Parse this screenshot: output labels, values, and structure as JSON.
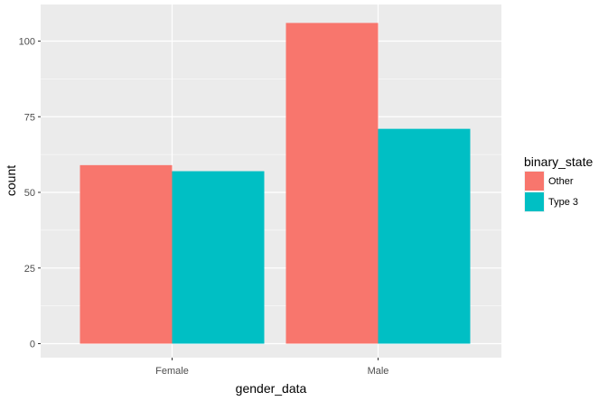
{
  "chart_data": {
    "type": "bar",
    "title": "",
    "xlabel": "gender_data",
    "ylabel": "count",
    "categories": [
      "Female",
      "Male"
    ],
    "series": [
      {
        "name": "Other",
        "color": "#F8766D",
        "values": [
          59,
          106
        ]
      },
      {
        "name": "Type 3",
        "color": "#00BFC4",
        "values": [
          57,
          71
        ]
      }
    ],
    "ylim": [
      0,
      110
    ],
    "yticks": [
      0,
      25,
      50,
      75,
      100
    ],
    "grid": true,
    "legend": {
      "title": "binary_state",
      "placement": "right"
    },
    "panel_background": "#EBEBEB",
    "grid_color": "#FFFFFF"
  }
}
